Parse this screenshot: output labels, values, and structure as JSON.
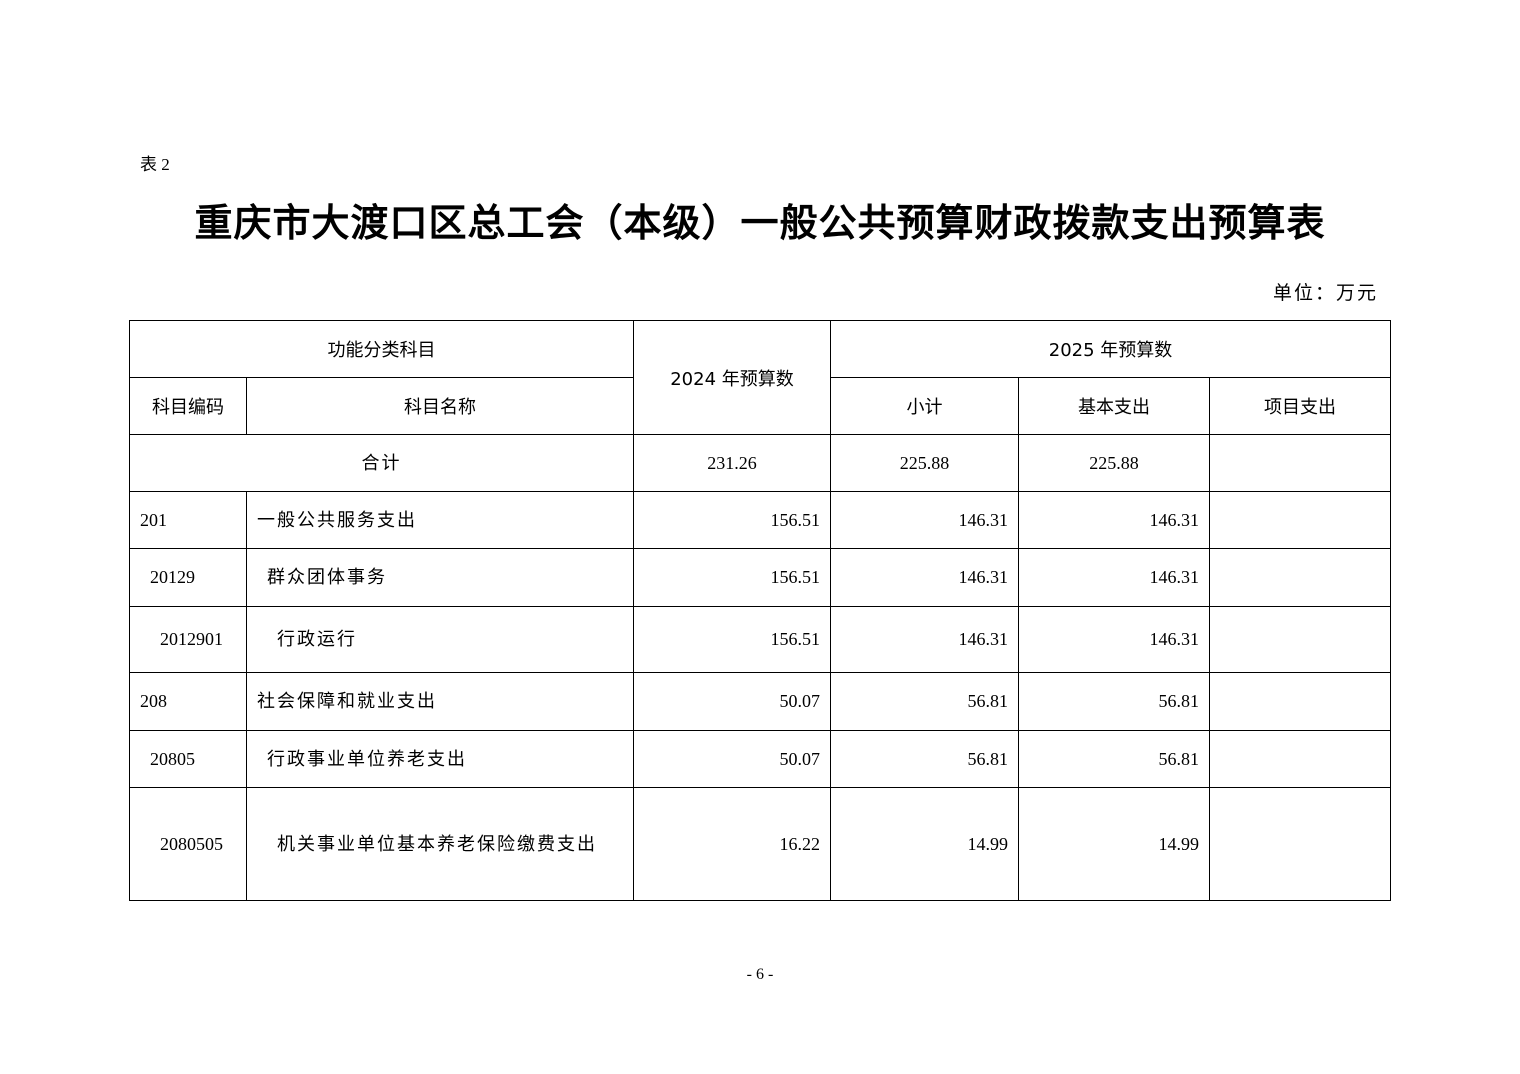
{
  "doc": {
    "table_label": "表 2",
    "title": "重庆市大渡口区总工会（本级）一般公共预算财政拨款支出预算表",
    "unit": "单位：万元",
    "page_number": "- 6 -"
  },
  "table": {
    "headers": {
      "functional_category": "功能分类科目",
      "budget_2024": "2024 年预算数",
      "budget_2025": "2025 年预算数",
      "code": "科目编码",
      "name": "科目名称",
      "subtotal": "小计",
      "basic": "基本支出",
      "project": "项目支出"
    },
    "total": {
      "label": "合计",
      "budget_2024": "231.26",
      "subtotal": "225.88",
      "basic": "225.88",
      "project": ""
    },
    "rows": [
      {
        "code": "201",
        "name": "一般公共服务支出",
        "budget_2024": "156.51",
        "subtotal": "146.31",
        "basic": "146.31",
        "project": ""
      },
      {
        "code": "20129",
        "name": "群众团体事务",
        "budget_2024": "156.51",
        "subtotal": "146.31",
        "basic": "146.31",
        "project": ""
      },
      {
        "code": "2012901",
        "name": "行政运行",
        "budget_2024": "156.51",
        "subtotal": "146.31",
        "basic": "146.31",
        "project": ""
      },
      {
        "code": "208",
        "name": "社会保障和就业支出",
        "budget_2024": "50.07",
        "subtotal": "56.81",
        "basic": "56.81",
        "project": ""
      },
      {
        "code": "20805",
        "name": "行政事业单位养老支出",
        "budget_2024": "50.07",
        "subtotal": "56.81",
        "basic": "56.81",
        "project": ""
      },
      {
        "code": "2080505",
        "name": "机关事业单位基本养老保险缴费支出",
        "budget_2024": "16.22",
        "subtotal": "14.99",
        "basic": "14.99",
        "project": ""
      }
    ]
  }
}
